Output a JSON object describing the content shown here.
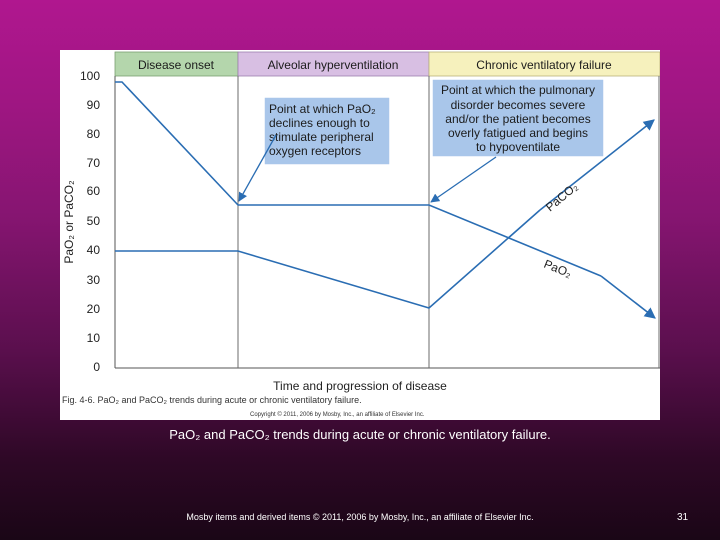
{
  "figure": {
    "phases": [
      "Disease onset",
      "Alveolar hyperventilation",
      "Chronic ventilatory failure"
    ],
    "y_axis_label": "PaO₂ or PaCO₂",
    "y_ticks": [
      "100",
      "90",
      "80",
      "70",
      "60",
      "50",
      "40",
      "30",
      "20",
      "10",
      "0"
    ],
    "x_axis_label": "Time and progression of disease",
    "callout_1": [
      "Point at which PaO₂",
      "declines enough to",
      "stimulate peripheral",
      "oxygen receptors"
    ],
    "callout_2": [
      "Point at which the pulmonary",
      "disorder becomes severe",
      "and/or the patient becomes",
      "overly fatigued and begins",
      "to hypoventilate"
    ],
    "line_label_paco2": "PaCO₂",
    "line_label_pao2": "PaO₂",
    "fig_caption": "Fig. 4-6. PaO₂ and PaCO₂ trends during acute or chronic ventilatory failure.",
    "fig_copyright": "Copyright © 2011, 2006 by Mosby, Inc., an affiliate of Elsevier Inc.",
    "colors": {
      "line": "#2a6db3",
      "callout_bg": "#a9c6ea",
      "phase_1": "#b4d6ac",
      "phase_2": "#d8bfe3",
      "phase_3": "#f6f1bd"
    }
  },
  "slide": {
    "caption": "PaO₂ and PaCO₂ trends during acute or chronic ventilatory failure.",
    "footer": "Mosby items and derived items © 2011, 2006 by Mosby, Inc., an affiliate of Elsevier Inc.",
    "page_number": "31"
  }
}
